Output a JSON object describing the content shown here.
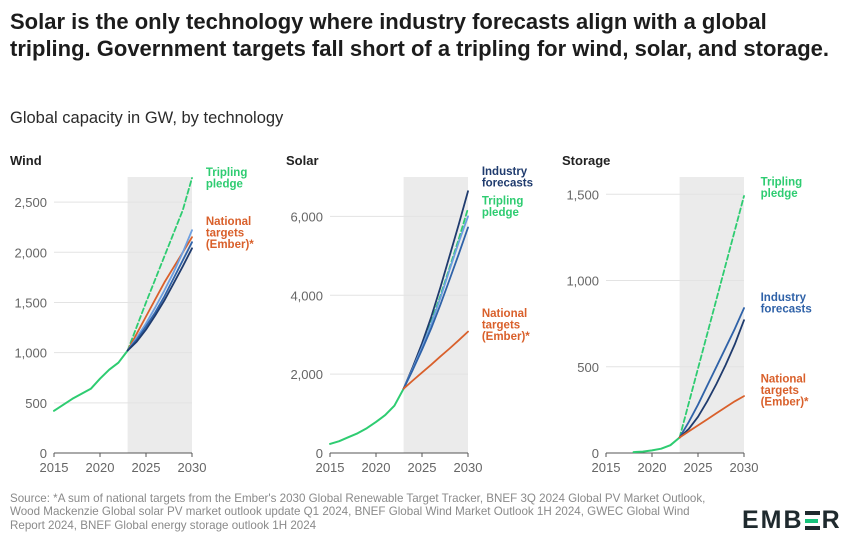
{
  "headline": "Solar is the only technology where industry forecasts align with a global tripling. Government targets fall short of a tripling for wind, solar, and storage.",
  "subtitle": "Global capacity in GW, by technology",
  "source": "Source: *A sum of national targets from the Ember's 2030 Global Renewable Target Tracker, BNEF 3Q 2024 Global PV Market Outlook, Wood Mackenzie Global solar PV market outlook update Q1 2024, BNEF Global Wind Market Outlook 1H 2024, GWEC Global Wind Report 2024, BNEF Global energy storage outlook 1H 2024",
  "logo": {
    "text_left": "EMB",
    "text_right": "R",
    "logo_name": "ember-logo"
  },
  "colors": {
    "history": "#2ecc71",
    "pledge": "#2ecc71",
    "national": "#d9602b",
    "industry_dark": "#1f3b6e",
    "industry_mid": "#2f62a8",
    "industry_light": "#6d9fe0",
    "shade": "#ebebeb",
    "grid": "#e3e3e3",
    "axis": "#555555"
  },
  "chart_data": [
    {
      "type": "line",
      "title": "Wind",
      "xlim": [
        2015,
        2030
      ],
      "ylim": [
        0,
        2750
      ],
      "yticks": [
        0,
        500,
        1000,
        1500,
        2000,
        2500
      ],
      "ytick_labels": [
        "0",
        "500",
        "1,000",
        "1,500",
        "2,000",
        "2,500"
      ],
      "xticks": [
        2015,
        2020,
        2025,
        2030
      ],
      "xtick_labels": [
        "2015",
        "2020",
        "2025",
        "2030"
      ],
      "shaded_range": [
        2023,
        2030
      ],
      "series": [
        {
          "name": "",
          "role": "history",
          "x": [
            2015,
            2016,
            2017,
            2018,
            2019,
            2020,
            2021,
            2022,
            2023
          ],
          "y": [
            420,
            480,
            540,
            590,
            640,
            740,
            830,
            900,
            1020
          ]
        },
        {
          "name": "Tripling pledge",
          "role": "pledge",
          "x": [
            2023,
            2024,
            2025,
            2026,
            2027,
            2028,
            2029,
            2030
          ],
          "y": [
            1020,
            1260,
            1500,
            1730,
            1960,
            2190,
            2420,
            2740
          ]
        },
        {
          "name": "National targets (Ember)*",
          "role": "national",
          "x": [
            2023,
            2024,
            2025,
            2026,
            2027,
            2028,
            2029,
            2030
          ],
          "y": [
            1020,
            1190,
            1360,
            1530,
            1700,
            1850,
            2000,
            2150
          ]
        },
        {
          "name": "",
          "role": "industry_light",
          "x": [
            2023,
            2024,
            2025,
            2026,
            2027,
            2028,
            2029,
            2030
          ],
          "y": [
            1020,
            1150,
            1290,
            1450,
            1620,
            1800,
            2000,
            2220
          ]
        },
        {
          "name": "",
          "role": "industry_mid",
          "x": [
            2023,
            2024,
            2025,
            2026,
            2027,
            2028,
            2029,
            2030
          ],
          "y": [
            1020,
            1130,
            1260,
            1400,
            1560,
            1740,
            1920,
            2100
          ]
        },
        {
          "name": "",
          "role": "industry_dark",
          "x": [
            2023,
            2024,
            2025,
            2026,
            2027,
            2028,
            2029,
            2030
          ],
          "y": [
            1020,
            1110,
            1230,
            1370,
            1520,
            1690,
            1860,
            2040
          ]
        }
      ],
      "labels": [
        {
          "lines": [
            "Tripling",
            "pledge"
          ],
          "role": "pledge",
          "x": 2030.2,
          "y": 2760
        },
        {
          "lines": [
            "National",
            "targets",
            "(Ember)*"
          ],
          "role": "national",
          "x": 2030.2,
          "y": 2270
        }
      ]
    },
    {
      "type": "line",
      "title": "Solar",
      "xlim": [
        2015,
        2030
      ],
      "ylim": [
        0,
        7000
      ],
      "yticks": [
        0,
        2000,
        4000,
        6000
      ],
      "ytick_labels": [
        "0",
        "2,000",
        "4,000",
        "6,000"
      ],
      "xticks": [
        2015,
        2020,
        2025,
        2030
      ],
      "xtick_labels": [
        "2015",
        "2020",
        "2025",
        "2030"
      ],
      "shaded_range": [
        2023,
        2030
      ],
      "series": [
        {
          "name": "",
          "role": "history",
          "x": [
            2015,
            2016,
            2017,
            2018,
            2019,
            2020,
            2021,
            2022,
            2023
          ],
          "y": [
            230,
            300,
            400,
            500,
            630,
            790,
            960,
            1200,
            1630
          ]
        },
        {
          "name": "Tripling pledge",
          "role": "pledge",
          "x": [
            2023,
            2024,
            2025,
            2026,
            2027,
            2028,
            2029,
            2030
          ],
          "y": [
            1630,
            2150,
            2720,
            3330,
            3990,
            4700,
            5430,
            6200
          ]
        },
        {
          "name": "Industry forecasts",
          "role": "industry_dark",
          "x": [
            2023,
            2024,
            2025,
            2026,
            2027,
            2028,
            2029,
            2030
          ],
          "y": [
            1630,
            2180,
            2780,
            3450,
            4200,
            5000,
            5800,
            6640
          ]
        },
        {
          "name": "",
          "role": "industry_light",
          "x": [
            2023,
            2024,
            2025,
            2026,
            2027,
            2028,
            2029,
            2030
          ],
          "y": [
            1630,
            2140,
            2680,
            3270,
            3930,
            4650,
            5350,
            6000
          ]
        },
        {
          "name": "",
          "role": "industry_mid",
          "x": [
            2023,
            2024,
            2025,
            2026,
            2027,
            2028,
            2029,
            2030
          ],
          "y": [
            1630,
            2110,
            2620,
            3160,
            3760,
            4400,
            5050,
            5720
          ]
        },
        {
          "name": "National targets (Ember)*",
          "role": "national",
          "x": [
            2023,
            2024,
            2025,
            2026,
            2027,
            2028,
            2029,
            2030
          ],
          "y": [
            1630,
            1840,
            2040,
            2240,
            2450,
            2650,
            2860,
            3080
          ]
        }
      ],
      "labels": [
        {
          "lines": [
            "Industry",
            "forecasts"
          ],
          "role": "industry_dark",
          "x": 2030.2,
          "y": 7050
        },
        {
          "lines": [
            "Tripling",
            "pledge"
          ],
          "role": "pledge",
          "x": 2030.2,
          "y": 6300
        },
        {
          "lines": [
            "National",
            "targets",
            "(Ember)*"
          ],
          "role": "national",
          "x": 2030.2,
          "y": 3450
        }
      ]
    },
    {
      "type": "line",
      "title": "Storage",
      "xlim": [
        2015,
        2030
      ],
      "ylim": [
        0,
        1600
      ],
      "yticks": [
        0,
        500,
        1000,
        1500
      ],
      "ytick_labels": [
        "0",
        "500",
        "1,000",
        "1,500"
      ],
      "xticks": [
        2015,
        2020,
        2025,
        2030
      ],
      "xtick_labels": [
        "2015",
        "2020",
        "2025",
        "2030"
      ],
      "shaded_range": [
        2023,
        2030
      ],
      "series": [
        {
          "name": "",
          "role": "history",
          "x": [
            2018,
            2019,
            2020,
            2021,
            2022,
            2023
          ],
          "y": [
            5,
            8,
            15,
            25,
            45,
            90
          ]
        },
        {
          "name": "Tripling pledge",
          "role": "pledge",
          "x": [
            2023,
            2024,
            2025,
            2026,
            2027,
            2028,
            2029,
            2030
          ],
          "y": [
            90,
            290,
            490,
            690,
            890,
            1090,
            1290,
            1490
          ]
        },
        {
          "name": "Industry forecasts",
          "role": "industry_mid",
          "x": [
            2023,
            2024,
            2025,
            2026,
            2027,
            2028,
            2029,
            2030
          ],
          "y": [
            90,
            180,
            280,
            390,
            500,
            610,
            720,
            840
          ]
        },
        {
          "name": "",
          "role": "industry_dark",
          "x": [
            2023,
            2024,
            2025,
            2026,
            2027,
            2028,
            2029,
            2030
          ],
          "y": [
            90,
            140,
            210,
            300,
            400,
            510,
            630,
            770
          ]
        },
        {
          "name": "National targets (Ember)*",
          "role": "national",
          "x": [
            2023,
            2024,
            2025,
            2026,
            2027,
            2028,
            2029,
            2030
          ],
          "y": [
            90,
            125,
            160,
            195,
            230,
            265,
            300,
            330
          ]
        }
      ],
      "labels": [
        {
          "lines": [
            "Tripling",
            "pledge"
          ],
          "role": "pledge",
          "x": 2030.5,
          "y": 1550
        },
        {
          "lines": [
            "Industry",
            "forecasts"
          ],
          "role": "industry_mid",
          "x": 2030.5,
          "y": 880
        },
        {
          "lines": [
            "National",
            "targets",
            "(Ember)*"
          ],
          "role": "national",
          "x": 2030.5,
          "y": 410
        }
      ]
    }
  ]
}
